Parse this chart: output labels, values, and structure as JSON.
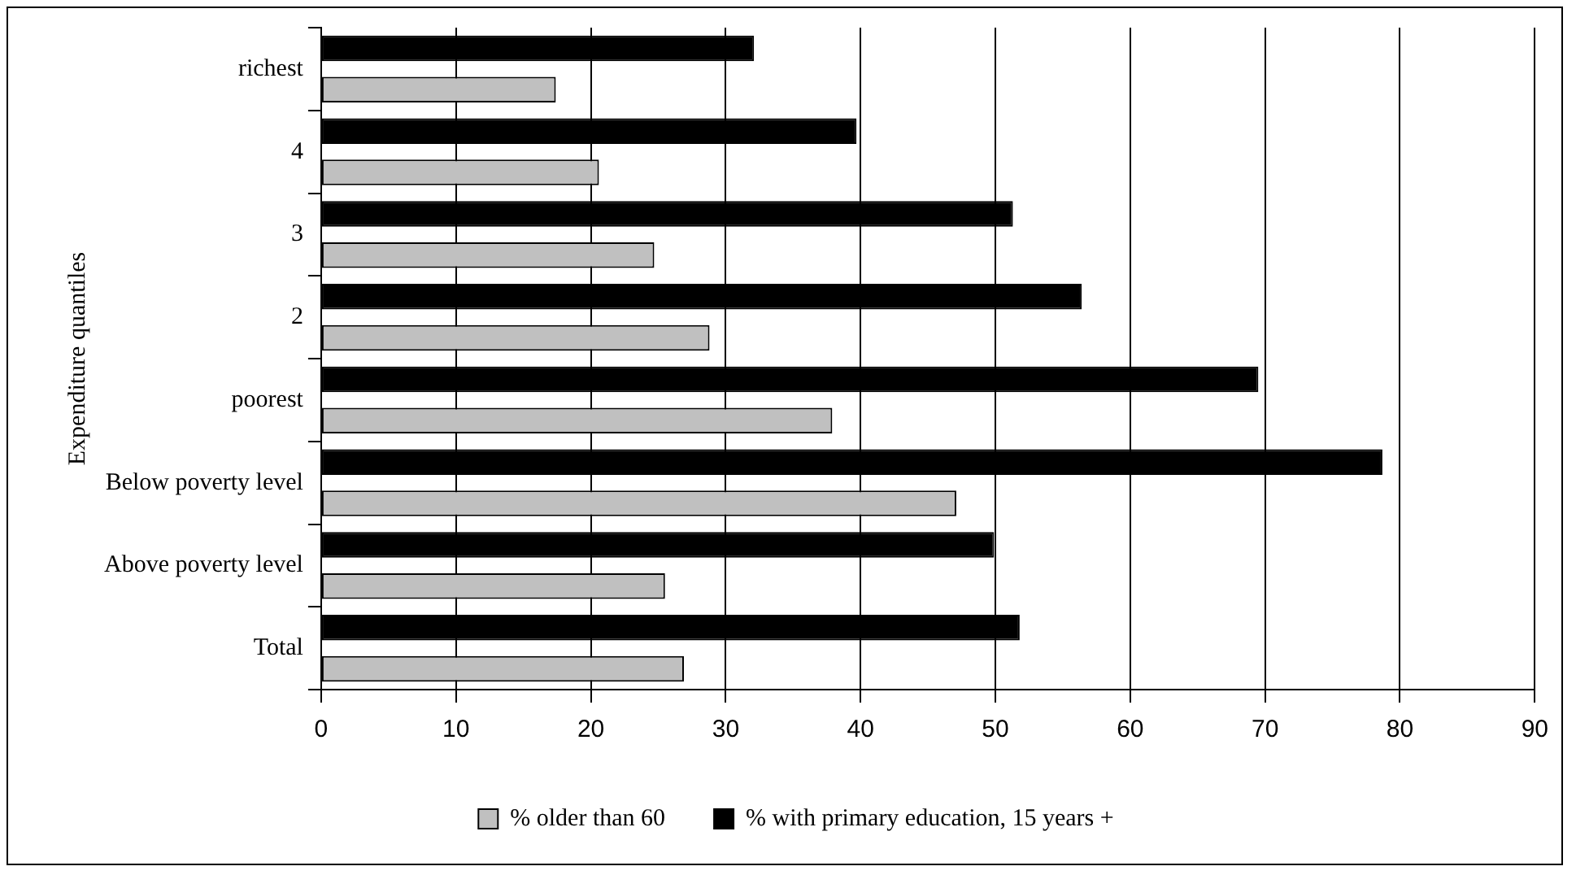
{
  "chart_data": {
    "type": "bar",
    "orientation": "horizontal",
    "ylabel": "Expenditure quantiles",
    "categories": [
      "richest",
      "4",
      "3",
      "2",
      "poorest",
      "Below poverty level",
      "Above poverty level",
      "Total"
    ],
    "series": [
      {
        "name": "% older than 60",
        "color": "#c0c0c0",
        "values": [
          17.4,
          20.6,
          24.7,
          28.8,
          37.9,
          47.1,
          25.5,
          26.9
        ]
      },
      {
        "name": "% with primary education, 15 years +",
        "color": "#000000",
        "values": [
          32.1,
          39.7,
          51.3,
          56.4,
          69.5,
          78.7,
          49.9,
          51.8
        ]
      }
    ],
    "xlim": [
      0,
      90
    ],
    "xticks": [
      0,
      10,
      20,
      30,
      40,
      50,
      60,
      70,
      80,
      90
    ],
    "grid": "x",
    "legend": "bottom"
  }
}
